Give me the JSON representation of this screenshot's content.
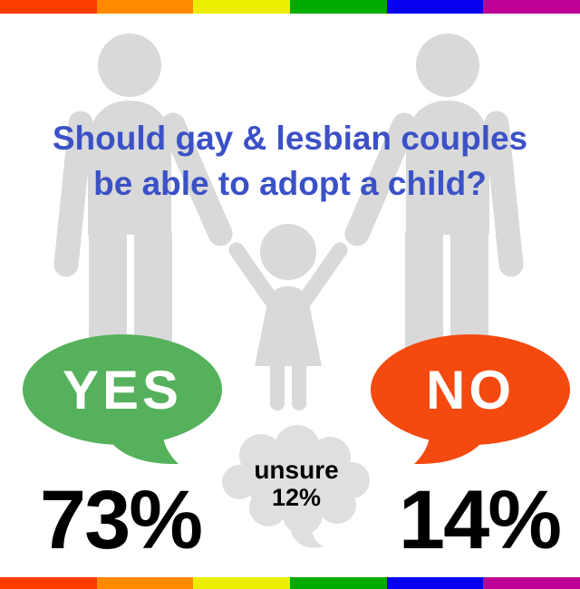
{
  "question": {
    "lines": [
      "Should gay & lesbian couples",
      "be able to adopt a child?"
    ],
    "full": "Should gay & lesbian couples be able to adopt a child?"
  },
  "responses": {
    "yes": {
      "label": "YES",
      "value": "73%"
    },
    "no": {
      "label": "NO",
      "value": "14%"
    },
    "unsure": {
      "label": "unsure",
      "value": "12%"
    }
  },
  "figures": {
    "left": "adult-person-silhouette",
    "right": "adult-person-silhouette",
    "center": "child-raising-arms-silhouette"
  },
  "colors": {
    "question_blue": "#3B51C6",
    "yes_green": "#55B15B",
    "no_orange": "#F4490F",
    "figure_gray": "#D9D9D9",
    "cloud_gray": "#DFDFDF",
    "value_black": "#000000",
    "bubble_text_white": "#FFFFFF"
  },
  "stripe": {
    "colors": [
      "#FF3C00",
      "#FF8A00",
      "#EDED00",
      "#00AB00",
      "#0800F0",
      "#BE0095"
    ]
  },
  "chart_data": {
    "type": "pie",
    "title": "Should gay & lesbian couples be able to adopt a child?",
    "categories": [
      "YES",
      "NO",
      "unsure"
    ],
    "values": [
      73,
      14,
      12
    ],
    "unit": "%",
    "legend_position": "none",
    "layout": "infographic: two gray adult silhouettes holding hands with a child; green YES speech bubble left with 73%, orange NO speech bubble right with 14%, gray thought cloud center with unsure 12%; rainbow stripes top and bottom"
  }
}
